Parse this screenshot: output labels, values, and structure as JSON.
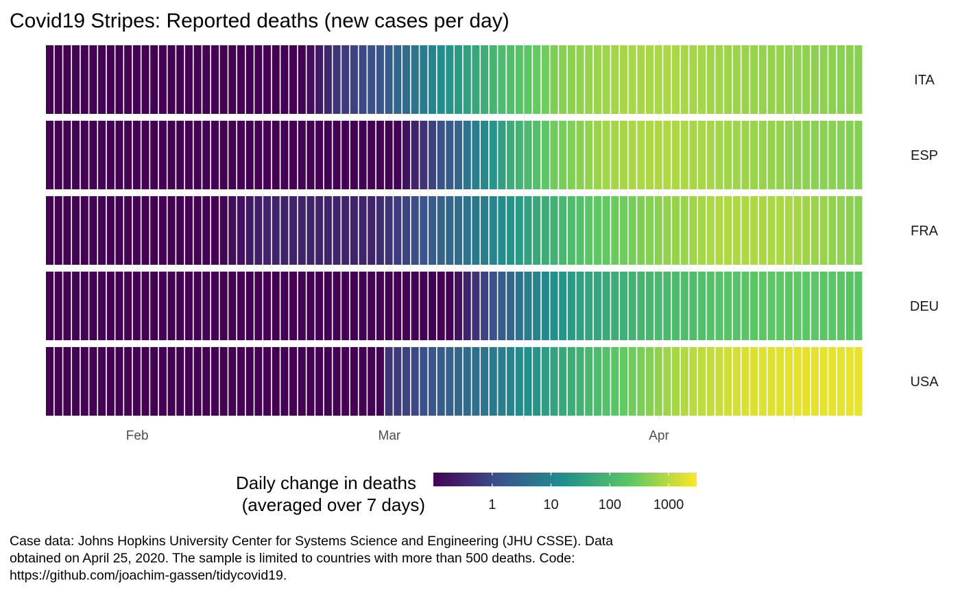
{
  "chart_data": {
    "type": "heatmap",
    "title": "Covid19 Stripes: Reported deaths (new cases per day)",
    "xlabel": "",
    "ylabel": "",
    "x_start": "2020-01-22",
    "x_end": "2020-04-24",
    "x_ticks": [
      {
        "date": "2020-02-01",
        "label": "Feb"
      },
      {
        "date": "2020-03-01",
        "label": "Mar"
      },
      {
        "date": "2020-04-01",
        "label": "Apr"
      }
    ],
    "legend": {
      "title_lines": [
        "Daily change in deaths",
        " (averaged over 7 days)"
      ],
      "placement": "bottom",
      "scale": "log10",
      "range": [
        0.1,
        3000
      ],
      "ticks": [
        {
          "value": 1,
          "label": "1"
        },
        {
          "value": 10,
          "label": "10"
        },
        {
          "value": 100,
          "label": "100"
        },
        {
          "value": 1000,
          "label": "1000"
        }
      ],
      "colors": [
        "#440154",
        "#3b528b",
        "#21908c",
        "#5dc863",
        "#fde725"
      ]
    },
    "series": [
      {
        "name": "ITA",
        "anchors": [
          [
            "2020-01-22",
            0.1
          ],
          [
            "2020-02-20",
            0.1
          ],
          [
            "2020-02-24",
            0.5
          ],
          [
            "2020-03-01",
            2
          ],
          [
            "2020-03-07",
            15
          ],
          [
            "2020-03-14",
            120
          ],
          [
            "2020-03-21",
            450
          ],
          [
            "2020-03-28",
            750
          ],
          [
            "2020-04-03",
            780
          ],
          [
            "2020-04-10",
            620
          ],
          [
            "2020-04-17",
            520
          ],
          [
            "2020-04-24",
            450
          ]
        ]
      },
      {
        "name": "ESP",
        "anchors": [
          [
            "2020-01-22",
            0.1
          ],
          [
            "2020-03-02",
            0.1
          ],
          [
            "2020-03-05",
            0.5
          ],
          [
            "2020-03-10",
            5
          ],
          [
            "2020-03-15",
            60
          ],
          [
            "2020-03-20",
            300
          ],
          [
            "2020-03-26",
            700
          ],
          [
            "2020-04-02",
            850
          ],
          [
            "2020-04-10",
            650
          ],
          [
            "2020-04-17",
            500
          ],
          [
            "2020-04-24",
            420
          ]
        ]
      },
      {
        "name": "FRA",
        "anchors": [
          [
            "2020-01-22",
            0.1
          ],
          [
            "2020-02-10",
            0.1
          ],
          [
            "2020-02-16",
            0.3
          ],
          [
            "2020-02-28",
            0.3
          ],
          [
            "2020-03-05",
            1.5
          ],
          [
            "2020-03-12",
            8
          ],
          [
            "2020-03-18",
            50
          ],
          [
            "2020-03-24",
            200
          ],
          [
            "2020-04-01",
            480
          ],
          [
            "2020-04-08",
            850
          ],
          [
            "2020-04-15",
            800
          ],
          [
            "2020-04-24",
            450
          ]
        ]
      },
      {
        "name": "DEU",
        "anchors": [
          [
            "2020-01-22",
            0.1
          ],
          [
            "2020-03-08",
            0.1
          ],
          [
            "2020-03-12",
            0.8
          ],
          [
            "2020-03-17",
            8
          ],
          [
            "2020-03-23",
            35
          ],
          [
            "2020-03-30",
            90
          ],
          [
            "2020-04-07",
            160
          ],
          [
            "2020-04-14",
            220
          ],
          [
            "2020-04-24",
            190
          ]
        ]
      },
      {
        "name": "USA",
        "anchors": [
          [
            "2020-01-22",
            0.1
          ],
          [
            "2020-02-29",
            0.1
          ],
          [
            "2020-03-01",
            0.5
          ],
          [
            "2020-03-07",
            2
          ],
          [
            "2020-03-14",
            8
          ],
          [
            "2020-03-21",
            50
          ],
          [
            "2020-03-28",
            250
          ],
          [
            "2020-04-04",
            900
          ],
          [
            "2020-04-11",
            1700
          ],
          [
            "2020-04-18",
            2050
          ],
          [
            "2020-04-24",
            2100
          ]
        ]
      }
    ]
  },
  "caption_lines": [
    "Case data: Johns Hopkins University Center for Systems Science and Engineering (JHU CSSE). Data",
    "obtained on April 25, 2020. The sample is limited to countries with more than 500 deaths. Code:",
    "https://github.com/joachim-gassen/tidycovid19."
  ]
}
